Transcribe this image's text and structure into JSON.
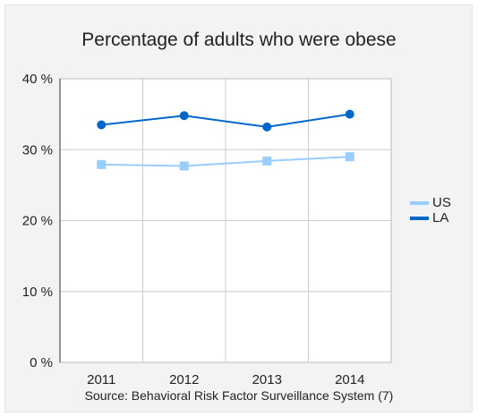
{
  "chart_data": {
    "type": "line",
    "title": "Percentage of adults who were obese",
    "source": "Source: Behavioral Risk Factor Surveillance System (7)",
    "xlabel": "",
    "ylabel": "",
    "categories": [
      "2011",
      "2012",
      "2013",
      "2014"
    ],
    "yticks": [
      "0 %",
      "10 %",
      "20 %",
      "30 %",
      "40 %"
    ],
    "ylim": [
      0,
      40
    ],
    "grid": true,
    "legend_position": "right",
    "series": [
      {
        "name": "US",
        "values": [
          27.9,
          27.7,
          28.4,
          29.0
        ],
        "color": "#99ccff",
        "marker": "square"
      },
      {
        "name": "LA",
        "values": [
          33.5,
          34.8,
          33.2,
          35.0
        ],
        "color": "#0066cc",
        "marker": "circle"
      }
    ]
  }
}
